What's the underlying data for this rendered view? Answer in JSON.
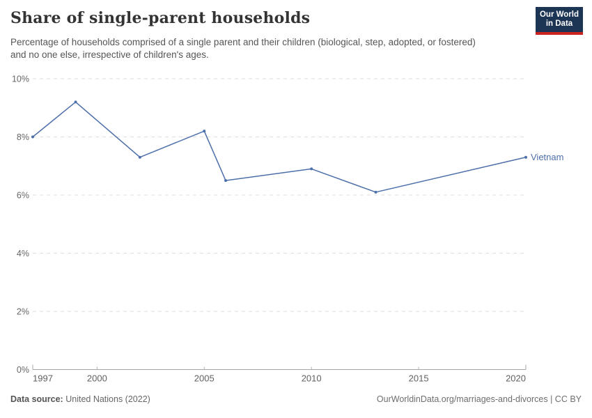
{
  "header": {
    "title": "Share of single-parent households",
    "subtitle": "Percentage of households comprised of a single parent and their children (biological, step, adopted, or fostered) and no one else, irrespective of children's ages.",
    "logo": {
      "line1": "Our World",
      "line2": "in Data"
    }
  },
  "chart_data": {
    "type": "line",
    "title": "Share of single-parent households",
    "xlabel": "",
    "ylabel": "",
    "xlim": [
      1997,
      2020
    ],
    "ylim": [
      0,
      10
    ],
    "grid": true,
    "legend_position": "end-of-line",
    "x_ticks": [
      {
        "value": 1997,
        "label": "1997"
      },
      {
        "value": 2000,
        "label": "2000"
      },
      {
        "value": 2005,
        "label": "2005"
      },
      {
        "value": 2010,
        "label": "2010"
      },
      {
        "value": 2015,
        "label": "2015"
      },
      {
        "value": 2020,
        "label": "2020"
      }
    ],
    "y_ticks": [
      {
        "value": 0,
        "label": "0%"
      },
      {
        "value": 2,
        "label": "2%"
      },
      {
        "value": 4,
        "label": "4%"
      },
      {
        "value": 6,
        "label": "6%"
      },
      {
        "value": 8,
        "label": "8%"
      },
      {
        "value": 10,
        "label": "10%"
      }
    ],
    "series": [
      {
        "name": "Vietnam",
        "color": "#4C6EA9",
        "x": [
          1997,
          1999,
          2002,
          2005,
          2006,
          2010,
          2013,
          2020
        ],
        "values": [
          8.0,
          9.2,
          7.3,
          8.2,
          6.5,
          6.9,
          6.1,
          7.3
        ]
      }
    ],
    "colors": {
      "grid": "#dddddd",
      "axis": "#a5a5a5",
      "tick": "#b3b3b3",
      "axis_text": "#666666"
    }
  },
  "footer": {
    "datasource_label": "Data source:",
    "datasource_value": "United Nations (2022)",
    "credit": "OurWorldinData.org/marriages-and-divorces | CC BY"
  }
}
